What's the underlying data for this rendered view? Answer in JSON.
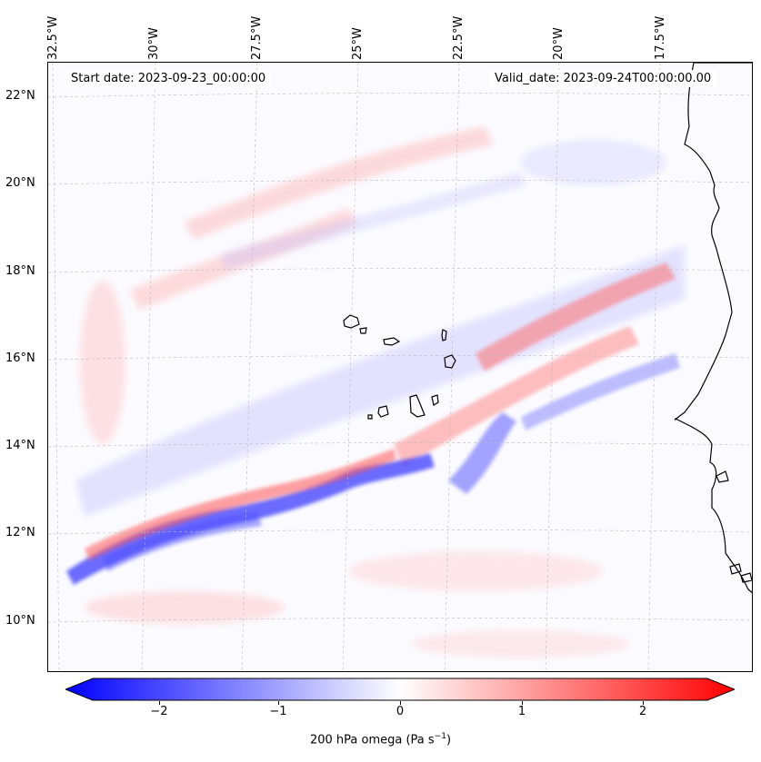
{
  "map": {
    "start_date": "Start date: 2023-09-23_00:00:00",
    "valid_date": "Valid_date: 2023-09-24T00:00:00.00",
    "lon_labels": [
      "32.5°W",
      "30°W",
      "27.5°W",
      "25°W",
      "22.5°W",
      "20°W",
      "17.5°W"
    ],
    "lat_labels": [
      "22°N",
      "20°N",
      "18°N",
      "16°N",
      "14°N",
      "12°N",
      "10°N"
    ],
    "field": "200 hPa omega",
    "colors": {
      "negative": "#0000ff",
      "positive": "#ff0000",
      "zero": "#ffffff",
      "coast": "#000000",
      "grid": "#bbbbbb"
    }
  },
  "colorbar": {
    "ticks": [
      "−2",
      "−1",
      "0",
      "1",
      "2"
    ],
    "tick_values": [
      -2,
      -1,
      0,
      1,
      2
    ],
    "range": [
      -2.6,
      2.6
    ],
    "label_main": "200 hPa omega (Pa s",
    "label_sup": "−1",
    "label_end": ")"
  }
}
